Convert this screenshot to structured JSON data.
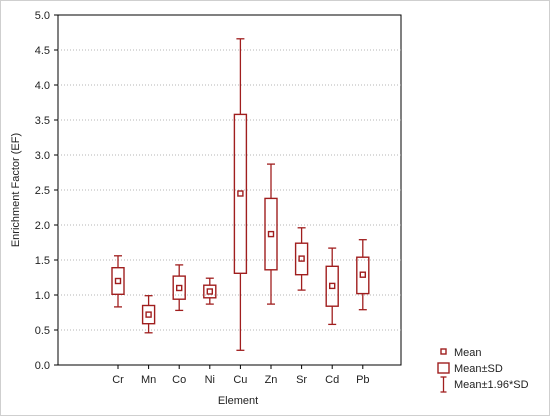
{
  "chart_data": {
    "type": "box",
    "xlabel": "Element",
    "ylabel": "Enrichment Factor (EF)",
    "ylim": [
      0,
      5
    ],
    "yticks": [
      "0.0",
      "0.5",
      "1.0",
      "1.5",
      "2.0",
      "2.5",
      "3.0",
      "3.5",
      "4.0",
      "4.5",
      "5.0"
    ],
    "grid": true,
    "color": "#a01e1e",
    "categories": [
      "Cr",
      "Mn",
      "Co",
      "Ni",
      "Cu",
      "Zn",
      "Sr",
      "Cd",
      "Pb"
    ],
    "mean": [
      1.2,
      0.72,
      1.1,
      1.05,
      2.45,
      1.87,
      1.52,
      1.13,
      1.29
    ],
    "mean_minus_sd": [
      1.01,
      0.59,
      0.94,
      0.96,
      1.31,
      1.36,
      1.29,
      0.84,
      1.02
    ],
    "mean_plus_sd": [
      1.39,
      0.85,
      1.27,
      1.14,
      3.58,
      2.38,
      1.74,
      1.41,
      1.54
    ],
    "mean_minus_1_96sd": [
      0.83,
      0.46,
      0.78,
      0.87,
      0.21,
      0.87,
      1.07,
      0.58,
      0.79
    ],
    "mean_plus_1_96sd": [
      1.56,
      0.99,
      1.43,
      1.24,
      4.66,
      2.87,
      1.96,
      1.67,
      1.79
    ],
    "legend": {
      "position": "bottom-right",
      "items": [
        "Mean",
        "Mean±SD",
        "Mean±1.96*SD"
      ]
    }
  }
}
